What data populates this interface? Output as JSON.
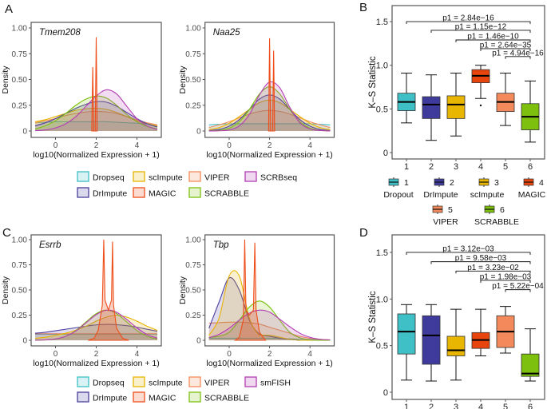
{
  "panel_labels": [
    "A",
    "B",
    "C",
    "D"
  ],
  "colors": {
    "Dropseq": "#3FBFC6",
    "Dropout": "#3FBFC6",
    "DrImpute": "#4A3F9E",
    "scImpute": "#E8B400",
    "MAGIC": "#EE4E1A",
    "VIPER": "#F48A5B",
    "SCRABBLE": "#7DC10E",
    "SCRBseq": "#B33DB5",
    "smFISH": "#B33DB5"
  },
  "chart_data": [
    {
      "type": "area",
      "title": "Tmem208",
      "xlabel": "log10(Normalized Expression + 1)",
      "ylabel": "Density",
      "xlim": [
        -1,
        5
      ],
      "ylim": [
        0,
        1
      ],
      "xticks": [
        "0",
        "2",
        "4"
      ],
      "yticks": [
        "0",
        "0.25",
        "0.50",
        "0.75",
        "1.00"
      ],
      "x": [
        -1,
        -0.5,
        0,
        0.5,
        1,
        1.5,
        2,
        2.5,
        3,
        3.5,
        4,
        4.5,
        5
      ],
      "series": [
        {
          "name": "Dropseq",
          "values": [
            0.08,
            0.085,
            0.09,
            0.09,
            0.09,
            0.09,
            0.09,
            0.09,
            0.085,
            0.08,
            0.075,
            0.07,
            0.06
          ]
        },
        {
          "name": "VIPER",
          "values": [
            0.08,
            0.1,
            0.12,
            0.15,
            0.17,
            0.185,
            0.19,
            0.185,
            0.17,
            0.14,
            0.11,
            0.08,
            0.06
          ]
        },
        {
          "name": "scImpute",
          "values": [
            0.09,
            0.11,
            0.14,
            0.17,
            0.2,
            0.215,
            0.22,
            0.21,
            0.18,
            0.14,
            0.1,
            0.07,
            0.05
          ]
        },
        {
          "name": "DrImpute",
          "values": [
            0.05,
            0.08,
            0.12,
            0.17,
            0.22,
            0.26,
            0.285,
            0.28,
            0.24,
            0.18,
            0.12,
            0.07,
            0.04
          ]
        },
        {
          "name": "SCRABBLE",
          "values": [
            0.02,
            0.05,
            0.1,
            0.17,
            0.25,
            0.31,
            0.34,
            0.32,
            0.25,
            0.16,
            0.09,
            0.045,
            0.02
          ]
        },
        {
          "name": "SCRBseq",
          "values": [
            0.003,
            0.01,
            0.03,
            0.07,
            0.14,
            0.24,
            0.34,
            0.4,
            0.36,
            0.24,
            0.12,
            0.05,
            0.015
          ]
        }
      ],
      "spikes": {
        "name": "MAGIC",
        "points": [
          [
            1.78,
            0
          ],
          [
            1.83,
            0.62
          ],
          [
            1.88,
            0
          ],
          [
            1.95,
            0
          ],
          [
            2.0,
            0.91
          ],
          [
            2.05,
            0
          ]
        ]
      }
    },
    {
      "type": "area",
      "title": "Naa25",
      "xlabel": "log10(Normalized Expression + 1)",
      "ylabel": "Density",
      "xlim": [
        -1,
        5
      ],
      "ylim": [
        0,
        1
      ],
      "xticks": [
        "0",
        "2",
        "4"
      ],
      "yticks": [
        "0",
        "0.25",
        "0.50",
        "0.75",
        "1.00"
      ],
      "x": [
        -1,
        -0.5,
        0,
        0.5,
        1,
        1.5,
        2,
        2.5,
        3,
        3.5,
        4,
        4.5,
        5
      ],
      "series": [
        {
          "name": "Dropseq",
          "values": [
            0.06,
            0.065,
            0.07,
            0.07,
            0.07,
            0.07,
            0.07,
            0.07,
            0.07,
            0.07,
            0.07,
            0.065,
            0.06
          ]
        },
        {
          "name": "VIPER",
          "values": [
            0.034,
            0.06,
            0.09,
            0.128,
            0.164,
            0.19,
            0.2,
            0.19,
            0.164,
            0.128,
            0.09,
            0.06,
            0.034
          ]
        },
        {
          "name": "scImpute",
          "values": [
            0.013,
            0.033,
            0.075,
            0.14,
            0.21,
            0.275,
            0.3,
            0.275,
            0.21,
            0.14,
            0.075,
            0.033,
            0.013
          ]
        },
        {
          "name": "DrImpute",
          "values": [
            0.004,
            0.015,
            0.047,
            0.11,
            0.21,
            0.31,
            0.35,
            0.31,
            0.21,
            0.11,
            0.047,
            0.015,
            0.004
          ]
        },
        {
          "name": "SCRABBLE",
          "values": [
            0.001,
            0.006,
            0.027,
            0.09,
            0.21,
            0.36,
            0.43,
            0.36,
            0.21,
            0.09,
            0.027,
            0.006,
            0.001
          ]
        },
        {
          "name": "SCRBseq",
          "values": [
            0,
            0.002,
            0.01,
            0.05,
            0.16,
            0.35,
            0.475,
            0.42,
            0.23,
            0.08,
            0.02,
            0.005,
            0
          ]
        }
      ],
      "spikes": {
        "name": "MAGIC",
        "points": [
          [
            1.95,
            0
          ],
          [
            2.0,
            0.9
          ],
          [
            2.05,
            0
          ],
          [
            2.15,
            0
          ],
          [
            2.2,
            0.78
          ],
          [
            2.25,
            0
          ]
        ]
      }
    },
    {
      "type": "area",
      "title": "Esrrb",
      "xlabel": "log10(Normalized Expression + 1)",
      "ylabel": "Density",
      "xlim": [
        -1,
        5
      ],
      "ylim": [
        0,
        1
      ],
      "xticks": [
        "0",
        "2",
        "4"
      ],
      "yticks": [
        "0",
        "0.25",
        "0.50",
        "0.75",
        "1.00"
      ],
      "x": [
        -1,
        -0.5,
        0,
        0.5,
        1,
        1.5,
        2,
        2.5,
        3,
        3.5,
        4,
        4.5,
        5
      ],
      "series": [
        {
          "name": "Dropseq",
          "values": [
            0.06,
            0.06,
            0.06,
            0.06,
            0.06,
            0.06,
            0.06,
            0.06,
            0.06,
            0.06,
            0.06,
            0.06,
            0.06
          ]
        },
        {
          "name": "VIPER",
          "values": [
            0.065,
            0.065,
            0.065,
            0.065,
            0.065,
            0.065,
            0.065,
            0.065,
            0.065,
            0.065,
            0.065,
            0.065,
            0.065
          ]
        },
        {
          "name": "DrImpute",
          "values": [
            0.07,
            0.08,
            0.095,
            0.11,
            0.125,
            0.14,
            0.153,
            0.158,
            0.155,
            0.145,
            0.13,
            0.11,
            0.09
          ]
        },
        {
          "name": "scImpute",
          "values": [
            0.02,
            0.03,
            0.05,
            0.07,
            0.1,
            0.14,
            0.19,
            0.23,
            0.25,
            0.23,
            0.19,
            0.14,
            0.1
          ]
        },
        {
          "name": "SCRABBLE",
          "values": [
            0.001,
            0.003,
            0.013,
            0.04,
            0.097,
            0.182,
            0.265,
            0.3,
            0.265,
            0.182,
            0.097,
            0.04,
            0.013
          ]
        },
        {
          "name": "smFISH",
          "values": [
            0.001,
            0.004,
            0.014,
            0.04,
            0.093,
            0.174,
            0.255,
            0.299,
            0.279,
            0.207,
            0.123,
            0.057,
            0.021
          ]
        }
      ],
      "spikes": {
        "name": "MAGIC",
        "points": [
          [
            1.6,
            0
          ],
          [
            1.9,
            0.02
          ],
          [
            2.1,
            0.1
          ],
          [
            2.3,
            0.35
          ],
          [
            2.37,
            1.0
          ],
          [
            2.43,
            0.4
          ],
          [
            2.6,
            0.3
          ],
          [
            2.75,
            0.4
          ],
          [
            2.8,
            0.98
          ],
          [
            2.85,
            0.35
          ],
          [
            3.0,
            0.12
          ],
          [
            3.3,
            0.02
          ],
          [
            3.6,
            0
          ]
        ]
      }
    },
    {
      "type": "area",
      "title": "Tbp",
      "xlabel": "log10(Normalized Expression + 1)",
      "ylabel": "Density",
      "xlim": [
        -1,
        5
      ],
      "ylim": [
        0,
        1
      ],
      "xticks": [
        "0",
        "2",
        "4"
      ],
      "yticks": [
        "0",
        "0.25",
        "0.50",
        "0.75",
        "1.00"
      ],
      "x": [
        -1,
        -0.5,
        0,
        0.5,
        1,
        1.5,
        2,
        2.5,
        3,
        3.5,
        4,
        4.5,
        5
      ],
      "series": [
        {
          "name": "Dropseq",
          "values": [
            0.02,
            0.02,
            0.02,
            0.02,
            0.02,
            0.02,
            0.02,
            0.02,
            0.015,
            0.01,
            0.01,
            0.005,
            0.005
          ]
        },
        {
          "name": "VIPER",
          "values": [
            0.17,
            0.175,
            0.18,
            0.18,
            0.175,
            0.16,
            0.13,
            0.1,
            0.07,
            0.04,
            0.02,
            0.01,
            0.005
          ]
        },
        {
          "name": "DrImpute",
          "values": [
            0.12,
            0.38,
            0.62,
            0.5,
            0.2,
            0.06,
            0.04,
            0.02,
            0.01,
            0,
            0,
            0,
            0
          ]
        },
        {
          "name": "scImpute",
          "values": [
            0.05,
            0.22,
            0.64,
            0.64,
            0.22,
            0.05,
            0.05,
            0.03,
            0.01,
            0,
            0,
            0,
            0
          ]
        },
        {
          "name": "SCRABBLE",
          "values": [
            0.03,
            0.04,
            0.08,
            0.2,
            0.33,
            0.39,
            0.33,
            0.2,
            0.08,
            0.025,
            0.005,
            0,
            0
          ]
        },
        {
          "name": "smFISH",
          "values": [
            0.026,
            0.06,
            0.12,
            0.2,
            0.27,
            0.3,
            0.28,
            0.21,
            0.135,
            0.07,
            0.03,
            0.011,
            0.004
          ]
        }
      ],
      "spikes": {
        "name": "MAGIC",
        "points": [
          [
            0.3,
            0
          ],
          [
            0.5,
            0.03
          ],
          [
            0.7,
            0.2
          ],
          [
            0.77,
            1.0
          ],
          [
            0.83,
            0.3
          ],
          [
            1.0,
            0.25
          ],
          [
            1.2,
            0.3
          ],
          [
            1.27,
            0.97
          ],
          [
            1.33,
            0.3
          ],
          [
            1.5,
            0.08
          ],
          [
            1.8,
            0
          ]
        ]
      }
    },
    {
      "type": "box",
      "ylabel": "K–S Statistic",
      "ylim": [
        0,
        1.6
      ],
      "yticks": [
        "0",
        "0.5",
        "1.0",
        "1.5"
      ],
      "categories": [
        "1",
        "2",
        "3",
        "4",
        "5",
        "6"
      ],
      "boxes": [
        {
          "color": "#3FBFC6",
          "min": 0.34,
          "q1": 0.48,
          "median": 0.58,
          "q3": 0.68,
          "max": 0.91,
          "outliers": []
        },
        {
          "color": "#3F3B9C",
          "min": 0.14,
          "q1": 0.39,
          "median": 0.55,
          "q3": 0.64,
          "max": 0.89,
          "outliers": []
        },
        {
          "color": "#E8B600",
          "min": 0.19,
          "q1": 0.39,
          "median": 0.55,
          "q3": 0.65,
          "max": 0.91,
          "outliers": []
        },
        {
          "color": "#E8450E",
          "min": 0.62,
          "q1": 0.8,
          "median": 0.88,
          "q3": 0.95,
          "max": 1.0,
          "outliers": [
            0.54
          ]
        },
        {
          "color": "#F48A5B",
          "min": 0.31,
          "q1": 0.47,
          "median": 0.58,
          "q3": 0.68,
          "max": 0.91,
          "outliers": []
        },
        {
          "color": "#7DC10E",
          "min": 0.12,
          "q1": 0.26,
          "median": 0.41,
          "q3": 0.56,
          "max": 0.82,
          "outliers": []
        }
      ],
      "comparisons": [
        {
          "from": 1,
          "to": 6,
          "y": 1.5,
          "label": "p1 = 2.84e−16"
        },
        {
          "from": 2,
          "to": 6,
          "y": 1.4,
          "label": "p1 = 1.15e−12"
        },
        {
          "from": 3,
          "to": 6,
          "y": 1.29,
          "label": "p1 = 1.46e−10"
        },
        {
          "from": 4,
          "to": 6,
          "y": 1.19,
          "label": "p1 = 2.64e−35"
        },
        {
          "from": 5,
          "to": 6,
          "y": 1.1,
          "label": "p1 = 4.94e−16"
        }
      ]
    },
    {
      "type": "box",
      "ylabel": "K–S Statistic",
      "ylim": [
        0,
        1.6
      ],
      "yticks": [
        "0",
        "0.5",
        "1.0",
        "1.5"
      ],
      "categories": [
        "1",
        "2",
        "3",
        "4",
        "5",
        "6"
      ],
      "boxes": [
        {
          "color": "#3FBFC6",
          "min": 0.13,
          "q1": 0.41,
          "median": 0.65,
          "q3": 0.84,
          "max": 0.94,
          "outliers": []
        },
        {
          "color": "#3F3B9C",
          "min": 0.12,
          "q1": 0.3,
          "median": 0.61,
          "q3": 0.82,
          "max": 0.94,
          "outliers": []
        },
        {
          "color": "#E8B600",
          "min": 0.13,
          "q1": 0.39,
          "median": 0.45,
          "q3": 0.6,
          "max": 0.89,
          "outliers": []
        },
        {
          "color": "#E8450E",
          "min": 0.39,
          "q1": 0.47,
          "median": 0.56,
          "q3": 0.64,
          "max": 0.89,
          "outliers": []
        },
        {
          "color": "#F48A5B",
          "min": 0.42,
          "q1": 0.48,
          "median": 0.65,
          "q3": 0.82,
          "max": 0.92,
          "outliers": []
        },
        {
          "color": "#7DC10E",
          "min": 0.12,
          "q1": 0.17,
          "median": 0.2,
          "q3": 0.41,
          "max": 0.68,
          "outliers": []
        }
      ],
      "comparisons": [
        {
          "from": 1,
          "to": 6,
          "y": 1.5,
          "label": "p1 = 3.12e−03"
        },
        {
          "from": 2,
          "to": 6,
          "y": 1.4,
          "label": "p1 = 9.58e−03"
        },
        {
          "from": 3,
          "to": 6,
          "y": 1.3,
          "label": "p1 = 3.23e−02"
        },
        {
          "from": 4,
          "to": 6,
          "y": 1.2,
          "label": "p1 = 1.98e−03"
        },
        {
          "from": 5,
          "to": 6,
          "y": 1.1,
          "label": "p1 = 5.22e−04"
        }
      ]
    }
  ],
  "legend_A": [
    [
      {
        "name": "Dropseq"
      },
      {
        "name": "scImpute"
      },
      {
        "name": "VIPER"
      },
      {
        "name": "SCRBseq"
      }
    ],
    [
      {
        "name": "DrImpute"
      },
      {
        "name": "MAGIC"
      },
      {
        "name": "SCRABBLE"
      }
    ]
  ],
  "legend_C": [
    [
      {
        "name": "Dropseq"
      },
      {
        "name": "scImpute"
      },
      {
        "name": "VIPER"
      },
      {
        "name": "smFISH"
      }
    ],
    [
      {
        "name": "DrImpute"
      },
      {
        "name": "MAGIC"
      },
      {
        "name": "SCRABBLE"
      }
    ]
  ],
  "legend_B": [
    {
      "num": "1",
      "name": "Dropout",
      "color": "#3FBFC6"
    },
    {
      "num": "2",
      "name": "DrImpute",
      "color": "#3F3B9C"
    },
    {
      "num": "3",
      "name": "scImpute",
      "color": "#E8B600"
    },
    {
      "num": "4",
      "name": "MAGIC",
      "color": "#E8450E"
    },
    {
      "num": "5",
      "name": "VIPER",
      "color": "#F48A5B"
    },
    {
      "num": "6",
      "name": "SCRABBLE",
      "color": "#7DC10E"
    }
  ]
}
